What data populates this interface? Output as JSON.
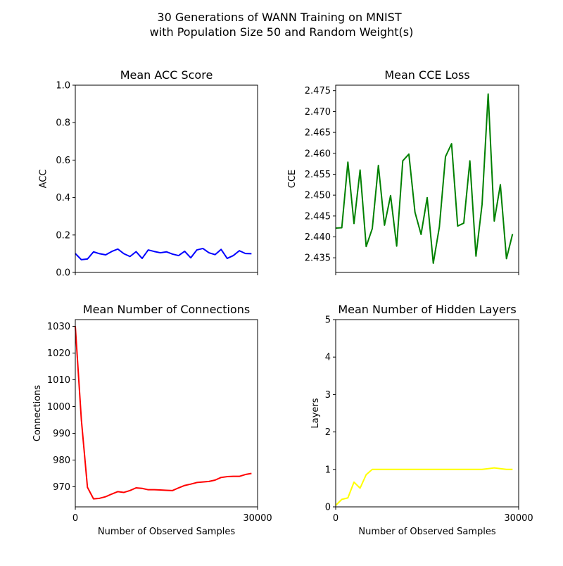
{
  "figure": {
    "title_line1": "30 Generations of WANN Training on MNIST",
    "title_line2": "with Population Size 50 and Random Weight(s)"
  },
  "chart_data": [
    {
      "type": "line",
      "title": "Mean ACC Score",
      "xlabel": "",
      "ylabel": "ACC",
      "xlim": [
        0,
        30000
      ],
      "ylim": [
        0,
        1.0
      ],
      "xticks": [],
      "yticks": [
        "0.0",
        "0.2",
        "0.4",
        "0.6",
        "0.8",
        "1.0"
      ],
      "color": "#0000ff",
      "x": [
        0,
        1000,
        2000,
        3000,
        4000,
        5000,
        6000,
        7000,
        8000,
        9000,
        10000,
        11000,
        12000,
        13000,
        14000,
        15000,
        16000,
        17000,
        18000,
        19000,
        20000,
        21000,
        22000,
        23000,
        24000,
        25000,
        26000,
        27000,
        28000,
        29000
      ],
      "y": [
        0.101,
        0.068,
        0.072,
        0.11,
        0.1,
        0.094,
        0.112,
        0.125,
        0.1,
        0.085,
        0.111,
        0.075,
        0.12,
        0.112,
        0.105,
        0.11,
        0.098,
        0.09,
        0.113,
        0.078,
        0.12,
        0.128,
        0.105,
        0.095,
        0.123,
        0.075,
        0.09,
        0.116,
        0.101,
        0.1
      ]
    },
    {
      "type": "line",
      "title": "Mean CCE Loss",
      "xlabel": "",
      "ylabel": "CCE",
      "xlim": [
        0,
        30000
      ],
      "ylim": [
        2.4315,
        2.4763
      ],
      "xticks": [],
      "yticks": [
        "2.435",
        "2.440",
        "2.445",
        "2.450",
        "2.455",
        "2.460",
        "2.465",
        "2.470",
        "2.475"
      ],
      "color": "#008000",
      "x": [
        0,
        1000,
        2000,
        3000,
        4000,
        5000,
        6000,
        7000,
        8000,
        9000,
        10000,
        11000,
        12000,
        13000,
        14000,
        15000,
        16000,
        17000,
        18000,
        19000,
        20000,
        21000,
        22000,
        23000,
        24000,
        25000,
        26000,
        27000,
        28000,
        29000
      ],
      "y": [
        2.4421,
        2.4422,
        2.4579,
        2.4432,
        2.456,
        2.4377,
        2.442,
        2.4571,
        2.4428,
        2.4499,
        2.4378,
        2.4582,
        2.4598,
        2.4459,
        2.4406,
        2.4494,
        2.4337,
        2.4424,
        2.4592,
        2.4623,
        2.4426,
        2.4433,
        2.4582,
        2.4354,
        2.4478,
        2.4742,
        2.4438,
        2.4525,
        2.4348,
        2.4407
      ]
    },
    {
      "type": "line",
      "title": "Mean Number of Connections",
      "xlabel": "Number of Observed Samples",
      "ylabel": "Connections",
      "xlim": [
        0,
        30000
      ],
      "ylim": [
        962.5,
        1032.5
      ],
      "xticks": [
        "0",
        "30000"
      ],
      "yticks": [
        "970",
        "980",
        "990",
        "1000",
        "1010",
        "1020",
        "1030"
      ],
      "color": "#ff0000",
      "x": [
        0,
        1000,
        2000,
        3000,
        4000,
        5000,
        6000,
        7000,
        8000,
        9000,
        10000,
        11000,
        12000,
        13000,
        14000,
        15000,
        16000,
        17000,
        18000,
        19000,
        20000,
        21000,
        22000,
        23000,
        24000,
        25000,
        26000,
        27000,
        28000,
        29000
      ],
      "y": [
        1030.0,
        995.0,
        969.8,
        965.5,
        965.7,
        966.3,
        967.3,
        968.2,
        967.9,
        968.6,
        969.6,
        969.4,
        968.9,
        968.9,
        968.8,
        968.7,
        968.6,
        969.6,
        970.5,
        971.0,
        971.6,
        971.8,
        972.0,
        972.5,
        973.5,
        973.8,
        973.9,
        973.9,
        974.6,
        975.0
      ]
    },
    {
      "type": "line",
      "title": "Mean Number of Hidden Layers",
      "xlabel": "Number of Observed Samples",
      "ylabel": "Layers",
      "xlim": [
        0,
        30000
      ],
      "ylim": [
        0,
        5
      ],
      "xticks": [
        "0",
        "30000"
      ],
      "yticks": [
        "0",
        "1",
        "2",
        "3",
        "4",
        "5"
      ],
      "color": "#ffff00",
      "x": [
        0,
        1000,
        2000,
        3000,
        4000,
        5000,
        6000,
        7000,
        8000,
        9000,
        10000,
        11000,
        12000,
        13000,
        14000,
        15000,
        16000,
        17000,
        18000,
        19000,
        20000,
        21000,
        22000,
        23000,
        24000,
        25000,
        26000,
        27000,
        28000,
        29000
      ],
      "y": [
        0.04,
        0.2,
        0.24,
        0.66,
        0.5,
        0.86,
        1.0,
        1.0,
        1.0,
        1.0,
        1.0,
        1.0,
        1.0,
        1.0,
        1.0,
        1.0,
        1.0,
        1.0,
        1.0,
        1.0,
        1.0,
        1.0,
        1.0,
        1.0,
        1.0,
        1.02,
        1.04,
        1.02,
        1.0,
        1.0
      ]
    }
  ]
}
